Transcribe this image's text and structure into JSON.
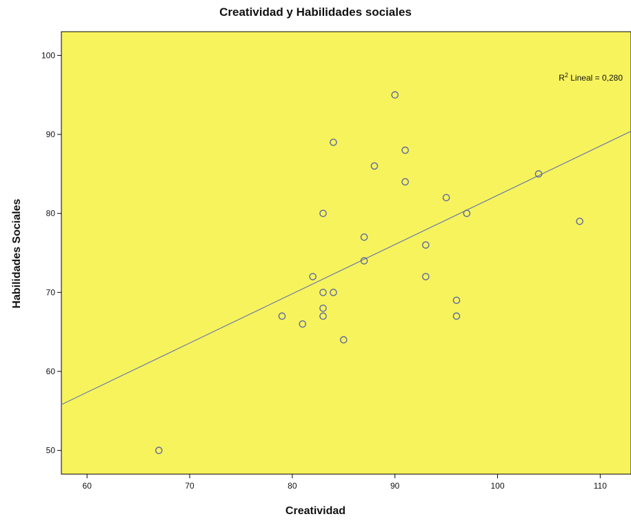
{
  "chart_data": {
    "type": "scatter",
    "title": "Creatividad y Habilidades sociales",
    "xlabel": "Creatividad",
    "ylabel": "Habilidades Sociales",
    "xlim": [
      57.5,
      113
    ],
    "ylim": [
      47,
      103
    ],
    "xticks": [
      60,
      70,
      80,
      90,
      100,
      110
    ],
    "yticks": [
      50,
      60,
      70,
      80,
      90,
      100
    ],
    "grid": false,
    "points": [
      {
        "x": 67,
        "y": 50
      },
      {
        "x": 79,
        "y": 67
      },
      {
        "x": 81,
        "y": 66
      },
      {
        "x": 82,
        "y": 72
      },
      {
        "x": 83,
        "y": 80
      },
      {
        "x": 83,
        "y": 70
      },
      {
        "x": 83,
        "y": 68
      },
      {
        "x": 83,
        "y": 67
      },
      {
        "x": 84,
        "y": 89
      },
      {
        "x": 84,
        "y": 70
      },
      {
        "x": 85,
        "y": 64
      },
      {
        "x": 87,
        "y": 77
      },
      {
        "x": 87,
        "y": 74
      },
      {
        "x": 88,
        "y": 86
      },
      {
        "x": 90,
        "y": 95
      },
      {
        "x": 91,
        "y": 88
      },
      {
        "x": 91,
        "y": 84
      },
      {
        "x": 93,
        "y": 76
      },
      {
        "x": 93,
        "y": 72
      },
      {
        "x": 95,
        "y": 82
      },
      {
        "x": 96,
        "y": 69
      },
      {
        "x": 96,
        "y": 67
      },
      {
        "x": 97,
        "y": 80
      },
      {
        "x": 104,
        "y": 85
      },
      {
        "x": 108,
        "y": 79
      }
    ],
    "fit_line": {
      "type": "linear",
      "x": [
        57.5,
        113
      ],
      "y": [
        55.8,
        90.4
      ]
    },
    "annotation": {
      "prefix": "R",
      "superscript": "2",
      "text": " Lineal = 0,280"
    },
    "colors": {
      "plot_background": "#f7f35d",
      "marker": "#5d6a9b",
      "line": "#6b7ba6",
      "axis": "#000000"
    }
  }
}
